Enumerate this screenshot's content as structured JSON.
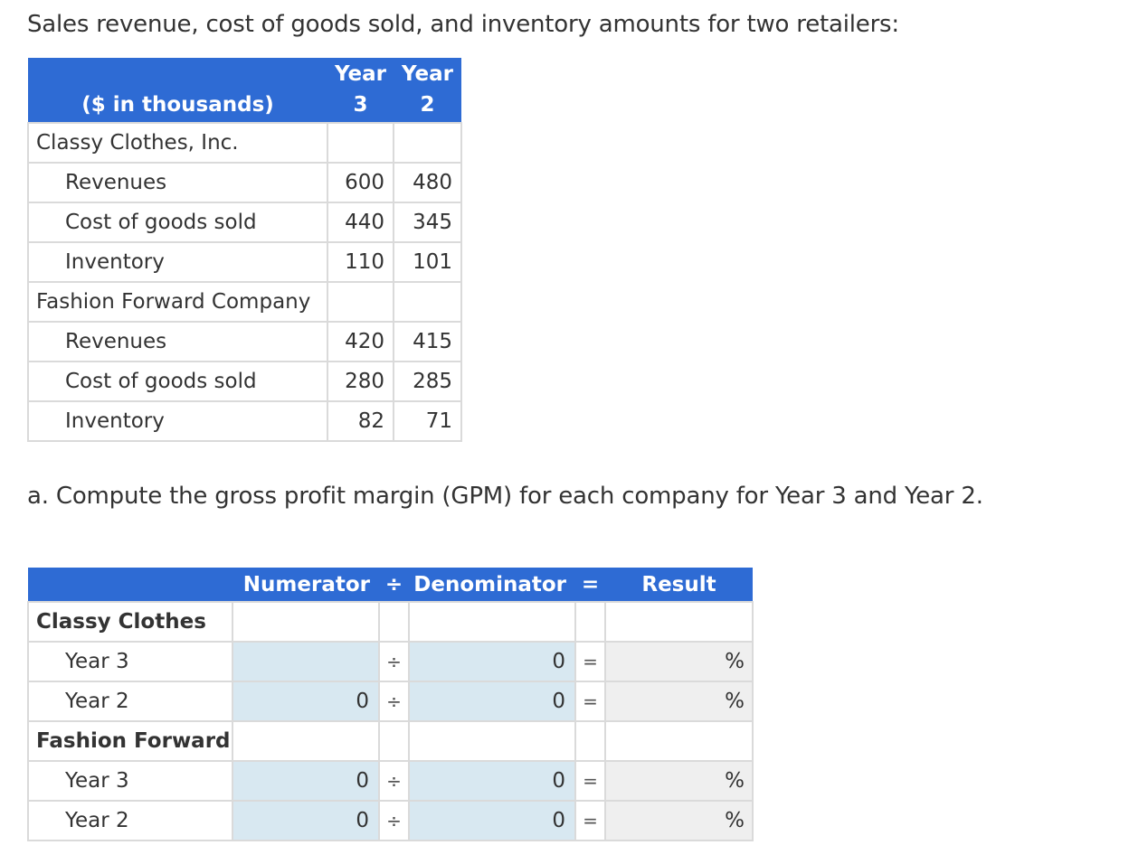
{
  "intro_text": "Sales revenue, cost of goods sold, and inventory amounts for two retailers:",
  "data_table": {
    "unit_label": "($ in thousands)",
    "col_year3": [
      "Year",
      "3"
    ],
    "col_year2": [
      "Year",
      "2"
    ],
    "companies": [
      {
        "name": "Classy Clothes, Inc.",
        "rows": [
          {
            "label": "Revenues",
            "y3": "600",
            "y2": "480"
          },
          {
            "label": "Cost of goods sold",
            "y3": "440",
            "y2": "345"
          },
          {
            "label": "Inventory",
            "y3": "110",
            "y2": "101"
          }
        ]
      },
      {
        "name": "Fashion Forward Company",
        "rows": [
          {
            "label": "Revenues",
            "y3": "420",
            "y2": "415"
          },
          {
            "label": "Cost of goods sold",
            "y3": "280",
            "y2": "285"
          },
          {
            "label": "Inventory",
            "y3": "82",
            "y2": "71"
          }
        ]
      }
    ]
  },
  "question_text": "a. Compute the gross profit margin (GPM) for each company for Year 3 and Year 2.",
  "calc_table": {
    "headers": {
      "numerator": "Numerator",
      "div": "÷",
      "denominator": "Denominator",
      "eq": "=",
      "result": "Result"
    },
    "div_symbol": "÷",
    "eq_symbol": "=",
    "pct_symbol": "%",
    "groups": [
      {
        "name": "Classy Clothes",
        "rows": [
          {
            "label": "Year 3",
            "numerator": "",
            "denominator": "0",
            "result": ""
          },
          {
            "label": "Year 2",
            "numerator": "0",
            "denominator": "0",
            "result": ""
          }
        ]
      },
      {
        "name": "Fashion Forward",
        "rows": [
          {
            "label": "Year 3",
            "numerator": "0",
            "denominator": "0",
            "result": ""
          },
          {
            "label": "Year 2",
            "numerator": "0",
            "denominator": "0",
            "result": ""
          }
        ]
      }
    ]
  }
}
